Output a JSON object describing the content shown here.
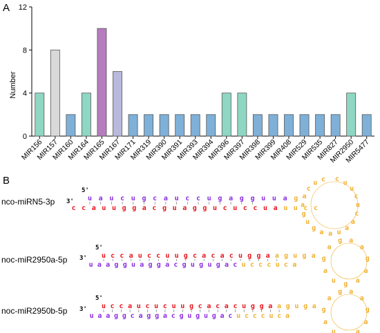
{
  "panels": {
    "a_label": "A",
    "b_label": "B"
  },
  "chart_data": {
    "type": "bar",
    "title": "",
    "xlabel": "",
    "ylabel": "Number",
    "ylim": [
      0,
      12
    ],
    "yticks": [
      0,
      4,
      8,
      12
    ],
    "grid": false,
    "categories": [
      "MIR156",
      "MIR157",
      "MIR160",
      "MIR164",
      "MIR165",
      "MIR167",
      "MIR171",
      "MIR319",
      "MIR390",
      "MIR391",
      "MIR393",
      "MIR394",
      "MIR396",
      "MIR397",
      "MIR398",
      "MIR399",
      "MIR408",
      "MIR529",
      "MIR535",
      "MIR827",
      "MIR2950",
      "MIR5477"
    ],
    "values": [
      4,
      8,
      2,
      4,
      10,
      6,
      2,
      2,
      2,
      2,
      2,
      2,
      4,
      4,
      2,
      2,
      2,
      2,
      2,
      2,
      4,
      2
    ],
    "bar_colors": [
      "#8fd6c3",
      "#d9d9d9",
      "#7fb0d8",
      "#8fd6c3",
      "#b77cc0",
      "#b9b9dc",
      "#7fb0d8",
      "#7fb0d8",
      "#7fb0d8",
      "#7fb0d8",
      "#7fb0d8",
      "#7fb0d8",
      "#8fd6c3",
      "#8fd6c3",
      "#7fb0d8",
      "#7fb0d8",
      "#7fb0d8",
      "#7fb0d8",
      "#7fb0d8",
      "#7fb0d8",
      "#8fd6c3",
      "#7fb0d8"
    ]
  },
  "colors": {
    "purple": "#8a2be2",
    "red": "#e8141c",
    "orange": "#f0b030"
  },
  "hairpins": [
    {
      "name": "nco-miRN5-3p",
      "five_prime": "5'",
      "three_prime": "3'",
      "top_bases": [
        "u",
        "a",
        "u",
        "c",
        "u",
        "g",
        "c",
        "a",
        "u",
        "c",
        "c",
        "u",
        "g",
        "a",
        "g",
        "g",
        "u",
        "u",
        "a",
        "g"
      ],
      "top_colors": [
        "purple",
        "purple",
        "purple",
        "purple",
        "purple",
        "purple",
        "purple",
        "purple",
        "purple",
        "purple",
        "purple",
        "purple",
        "purple",
        "purple",
        "purple",
        "purple",
        "purple",
        "purple",
        "purple",
        "orange"
      ],
      "bottom_bases": [
        "c",
        "c",
        "a",
        "u",
        "u",
        "g",
        "g",
        "a",
        "c",
        "g",
        "u",
        "a",
        "g",
        "g",
        "u",
        "c",
        "u",
        "c",
        "c",
        "u",
        "a",
        "u",
        "u",
        "c",
        "c"
      ],
      "bottom_colors": [
        "red",
        "red",
        "red",
        "red",
        "red",
        "red",
        "red",
        "red",
        "red",
        "red",
        "red",
        "red",
        "red",
        "red",
        "red",
        "red",
        "red",
        "red",
        "red",
        "red",
        "red",
        "orange",
        "orange",
        "orange",
        "orange"
      ],
      "loop_bases": [
        "c",
        "u",
        "u",
        "c",
        "u",
        "c",
        "a",
        "a",
        "u",
        "a",
        "a",
        "g",
        "u",
        "g",
        "a",
        "a",
        "c",
        "u",
        "c"
      ]
    },
    {
      "name": "noc-miR2950a-5p",
      "five_prime": "5'",
      "three_prime": "3'",
      "top_bases": [
        "u",
        "c",
        "c",
        "a",
        "u",
        "c",
        "c",
        "u",
        "u",
        "g",
        "c",
        "a",
        "c",
        "a",
        "c",
        "u",
        "g",
        "g",
        "a",
        "a",
        "g",
        "u",
        "g",
        "a"
      ],
      "top_colors": [
        "red",
        "red",
        "red",
        "red",
        "red",
        "red",
        "red",
        "red",
        "red",
        "red",
        "red",
        "red",
        "red",
        "red",
        "red",
        "red",
        "red",
        "red",
        "red",
        "orange",
        "orange",
        "orange",
        "orange",
        "orange"
      ],
      "bottom_bases": [
        "u",
        "a",
        "a",
        "g",
        "g",
        "u",
        "a",
        "g",
        "g",
        "a",
        "c",
        "g",
        "u",
        "g",
        "u",
        "g",
        "a",
        "c",
        "u",
        "c",
        "c",
        "c",
        "u",
        "c",
        "a"
      ],
      "bottom_colors": [
        "purple",
        "purple",
        "purple",
        "purple",
        "purple",
        "purple",
        "purple",
        "purple",
        "purple",
        "purple",
        "purple",
        "purple",
        "purple",
        "purple",
        "purple",
        "purple",
        "purple",
        "purple",
        "orange",
        "orange",
        "orange",
        "orange",
        "orange",
        "orange",
        "orange"
      ],
      "loop_bases": [
        "a",
        "a",
        "g",
        "a",
        "a",
        "g",
        "u",
        "a",
        "g",
        "a",
        "g"
      ]
    },
    {
      "name": "noc-miR2950b-5p",
      "five_prime": "5'",
      "three_prime": "3'",
      "top_bases": [
        "u",
        "c",
        "c",
        "a",
        "u",
        "c",
        "u",
        "c",
        "u",
        "u",
        "g",
        "c",
        "a",
        "c",
        "a",
        "c",
        "u",
        "g",
        "g",
        "a",
        "a",
        "g",
        "u",
        "g",
        "a"
      ],
      "top_colors": [
        "red",
        "red",
        "red",
        "red",
        "red",
        "red",
        "red",
        "red",
        "red",
        "red",
        "red",
        "red",
        "red",
        "red",
        "red",
        "red",
        "red",
        "red",
        "red",
        "red",
        "orange",
        "orange",
        "orange",
        "orange",
        "orange"
      ],
      "bottom_bases": [
        "u",
        "a",
        "a",
        "g",
        "g",
        "c",
        "a",
        "g",
        "g",
        "a",
        "c",
        "g",
        "u",
        "g",
        "u",
        "g",
        "a",
        "c",
        "u",
        "c",
        "c",
        "c",
        "u",
        "c",
        "a"
      ],
      "bottom_colors": [
        "purple",
        "purple",
        "purple",
        "purple",
        "purple",
        "purple",
        "purple",
        "purple",
        "purple",
        "purple",
        "purple",
        "purple",
        "purple",
        "purple",
        "purple",
        "purple",
        "purple",
        "purple",
        "orange",
        "orange",
        "orange",
        "orange",
        "orange",
        "orange",
        "orange"
      ],
      "loop_bases": [
        "a",
        "a",
        "g",
        "a",
        "a",
        "g",
        "u",
        "a",
        "g",
        "a",
        "g"
      ]
    }
  ]
}
